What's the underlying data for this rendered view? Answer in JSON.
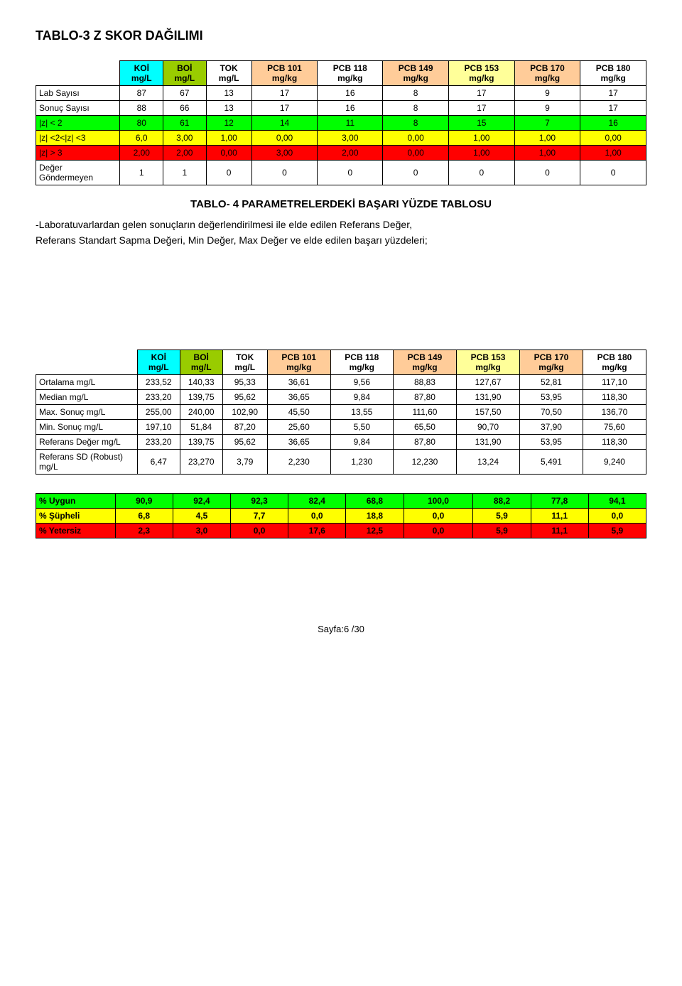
{
  "page": {
    "title": "TABLO-3  Z SKOR DAĞILIMI",
    "subtitle": "TABLO- 4 PARAMETRELERDEKİ BAŞARI YÜZDE TABLOSU",
    "desc1": "-Laboratuvarlardan gelen sonuçların değerlendirilmesi ile elde edilen Referans Değer,",
    "desc2": "Referans Standart Sapma Değeri, Min Değer, Max Değer ve elde edilen başarı yüzdeleri;",
    "footer": "Sayfa:6 /30"
  },
  "colors": {
    "koi": "#00ffff",
    "boi": "#99cc00",
    "tok": "#ffffff",
    "pcb101": "#ffcc99",
    "pcb118": "#ffffff",
    "pcb149": "#ffcc99",
    "pcb153": "#ffff99",
    "pcb170": "#ffcc99",
    "pcb180": "#ffffff",
    "yellow": "#ffff00",
    "green": "#00ff00",
    "red": "#ff0000"
  },
  "table1": {
    "headers": [
      "",
      "KOİ mg/L",
      "BOİ mg/L",
      "TOK mg/L",
      "PCB 101 mg/kg",
      "PCB 118 mg/kg",
      "PCB 149 mg/kg",
      "PCB 153 mg/kg",
      "PCB 170 mg/kg",
      "PCB 180 mg/kg"
    ],
    "header_bg": [
      "",
      "koi",
      "boi",
      "tok",
      "pcb101",
      "pcb118",
      "pcb149",
      "pcb153",
      "pcb170",
      "pcb180"
    ],
    "rows": [
      {
        "label": "Lab Sayısı",
        "cells": [
          "87",
          "67",
          "13",
          "17",
          "16",
          "8",
          "17",
          "9",
          "17"
        ],
        "bg": ""
      },
      {
        "label": "Sonuç Sayısı",
        "cells": [
          "88",
          "66",
          "13",
          "17",
          "16",
          "8",
          "17",
          "9",
          "17"
        ],
        "bg": ""
      },
      {
        "label": "|z| < 2",
        "cells": [
          "80",
          "61",
          "12",
          "14",
          "11",
          "8",
          "15",
          "7",
          "16"
        ],
        "bg": "green"
      },
      {
        "label": "|z| <2<|z| <3",
        "cells": [
          "6,0",
          "3,00",
          "1,00",
          "0,00",
          "3,00",
          "0,00",
          "1,00",
          "1,00",
          "0,00"
        ],
        "bg": "yellow"
      },
      {
        "label": "|z| > 3",
        "cells": [
          "2,00",
          "2,00",
          "0,00",
          "3,00",
          "2,00",
          "0,00",
          "1,00",
          "1,00",
          "1,00"
        ],
        "bg": "red"
      },
      {
        "label": "Değer Göndermeyen",
        "cells": [
          "1",
          "1",
          "0",
          "0",
          "0",
          "0",
          "0",
          "0",
          "0"
        ],
        "bg": ""
      }
    ]
  },
  "table2": {
    "headers": [
      "",
      "KOİ mg/L",
      "BOİ mg/L",
      "TOK mg/L",
      "PCB 101 mg/kg",
      "PCB 118 mg/kg",
      "PCB 149 mg/kg",
      "PCB 153 mg/kg",
      "PCB 170 mg/kg",
      "PCB 180 mg/kg"
    ],
    "header_bg": [
      "",
      "koi",
      "boi",
      "tok",
      "pcb101",
      "pcb118",
      "pcb149",
      "pcb153",
      "pcb170",
      "pcb180"
    ],
    "rows": [
      {
        "label": "Ortalama mg/L",
        "cells": [
          "233,52",
          "140,33",
          "95,33",
          "36,61",
          "9,56",
          "88,83",
          "127,67",
          "52,81",
          "117,10"
        ]
      },
      {
        "label": "Median mg/L",
        "cells": [
          "233,20",
          "139,75",
          "95,62",
          "36,65",
          "9,84",
          "87,80",
          "131,90",
          "53,95",
          "118,30"
        ]
      },
      {
        "label": "Max. Sonuç mg/L",
        "cells": [
          "255,00",
          "240,00",
          "102,90",
          "45,50",
          "13,55",
          "111,60",
          "157,50",
          "70,50",
          "136,70"
        ]
      },
      {
        "label": "Min. Sonuç mg/L",
        "cells": [
          "197,10",
          "51,84",
          "87,20",
          "25,60",
          "5,50",
          "65,50",
          "90,70",
          "37,90",
          "75,60"
        ]
      },
      {
        "label": "Referans Değer mg/L",
        "cells": [
          "233,20",
          "139,75",
          "95,62",
          "36,65",
          "9,84",
          "87,80",
          "131,90",
          "53,95",
          "118,30"
        ]
      },
      {
        "label": "Referans SD (Robust) mg/L",
        "cells": [
          "6,47",
          "23,270",
          "3,79",
          "2,230",
          "1,230",
          "12,230",
          "13,24",
          "5,491",
          "9,240"
        ]
      }
    ]
  },
  "table3": {
    "rows": [
      {
        "label": "%   Uygun",
        "cells": [
          "90,9",
          "92,4",
          "92,3",
          "82,4",
          "68,8",
          "100,0",
          "88,2",
          "77,8",
          "94,1"
        ],
        "bg": "green"
      },
      {
        "label": "%   Şüpheli",
        "cells": [
          "6,8",
          "4,5",
          "7,7",
          "0,0",
          "18,8",
          "0,0",
          "5,9",
          "11,1",
          "0,0"
        ],
        "bg": "yellow"
      },
      {
        "label": "%   Yetersiz",
        "cells": [
          "2,3",
          "3,0",
          "0,0",
          "17,6",
          "12,5",
          "0,0",
          "5,9",
          "11,1",
          "5,9"
        ],
        "bg": "red"
      }
    ]
  }
}
